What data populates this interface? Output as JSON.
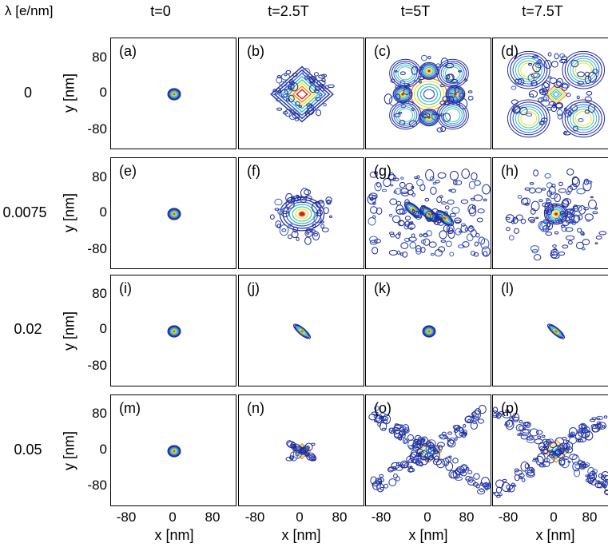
{
  "header": {
    "lambda_label": "λ [e/nm]",
    "columns": [
      "t=0",
      "t=2.5T",
      "t=5T",
      "t=7.5T"
    ]
  },
  "rows": [
    "0",
    "0.0075",
    "0.02",
    "0.05"
  ],
  "axes": {
    "xlabel": "x [nm]",
    "ylabel": "y [nm]",
    "ticks": [
      "-80",
      "0",
      "80"
    ]
  },
  "panel_labels": [
    "(a)",
    "(b)",
    "(c)",
    "(d)",
    "(e)",
    "(f)",
    "(g)",
    "(h)",
    "(i)",
    "(j)",
    "(k)",
    "(l)",
    "(m)",
    "(n)",
    "(o)",
    "(p)"
  ],
  "colors": {
    "low": "#1f2d9a",
    "mid": "#2fb5e0",
    "high": "#f0e020",
    "peak": "#d81c1c"
  },
  "chart_data": {
    "type": "heatmap",
    "title": "",
    "xlabel": "x [nm]",
    "ylabel": "y [nm]",
    "xlim": [
      -120,
      120
    ],
    "ylim": [
      -120,
      120
    ],
    "row_parameter": "λ [e/nm]",
    "row_values": [
      0,
      0.0075,
      0.02,
      0.05
    ],
    "column_parameter": "t",
    "column_values": [
      "t=0",
      "t=2.5T",
      "t=5T",
      "t=7.5T"
    ],
    "panels": [
      {
        "label": "(a)",
        "lambda": 0,
        "t": "t=0",
        "pattern": "gaussian",
        "spread_nm": 12
      },
      {
        "label": "(b)",
        "lambda": 0,
        "t": "t=2.5T",
        "pattern": "diamond-lattice",
        "spread_nm": 60
      },
      {
        "label": "(c)",
        "lambda": 0,
        "t": "t=5T",
        "pattern": "four-lobe",
        "spread_nm": 85
      },
      {
        "label": "(d)",
        "lambda": 0,
        "t": "t=7.5T",
        "pattern": "four-cluster",
        "spread_nm": 95
      },
      {
        "label": "(e)",
        "lambda": 0.0075,
        "t": "t=0",
        "pattern": "gaussian",
        "spread_nm": 12
      },
      {
        "label": "(f)",
        "lambda": 0.0075,
        "t": "t=2.5T",
        "pattern": "broad-blob",
        "spread_nm": 50
      },
      {
        "label": "(g)",
        "lambda": 0.0075,
        "t": "t=5T",
        "pattern": "diagonal-stripes",
        "spread_nm": 100
      },
      {
        "label": "(h)",
        "lambda": 0.0075,
        "t": "t=7.5T",
        "pattern": "central-blob",
        "spread_nm": 80
      },
      {
        "label": "(i)",
        "lambda": 0.02,
        "t": "t=0",
        "pattern": "gaussian",
        "spread_nm": 12
      },
      {
        "label": "(j)",
        "lambda": 0.02,
        "t": "t=2.5T",
        "pattern": "tilted-ellipse",
        "spread_nm": 20
      },
      {
        "label": "(k)",
        "lambda": 0.02,
        "t": "t=5T",
        "pattern": "gaussian",
        "spread_nm": 12
      },
      {
        "label": "(l)",
        "lambda": 0.02,
        "t": "t=7.5T",
        "pattern": "tilted-ellipse",
        "spread_nm": 20
      },
      {
        "label": "(m)",
        "lambda": 0.05,
        "t": "t=0",
        "pattern": "gaussian",
        "spread_nm": 12
      },
      {
        "label": "(n)",
        "lambda": 0.05,
        "t": "t=2.5T",
        "pattern": "small-cross",
        "spread_nm": 25
      },
      {
        "label": "(o)",
        "lambda": 0.05,
        "t": "t=5T",
        "pattern": "x-cross",
        "spread_nm": 110
      },
      {
        "label": "(p)",
        "lambda": 0.05,
        "t": "t=7.5T",
        "pattern": "x-cross",
        "spread_nm": 120
      }
    ]
  }
}
